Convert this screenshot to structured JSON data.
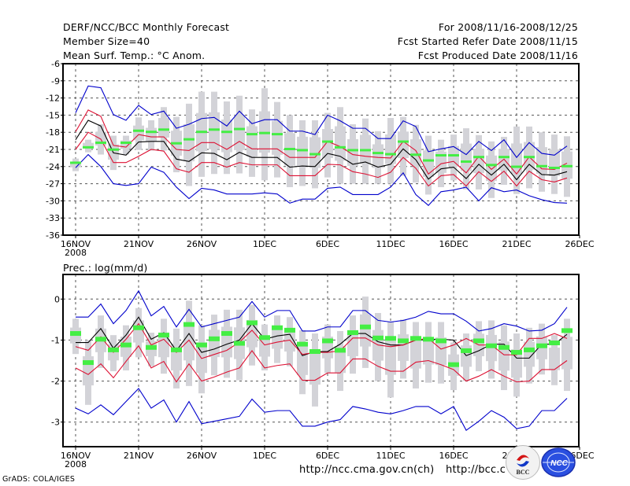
{
  "header": {
    "title": "DERF/NCC/BCC Monthly Forecast",
    "member_size": "Member Size=40",
    "variable_top": "Mean Surf. Temp.: °C Anom.",
    "period": "For 2008/11/16-2008/12/25",
    "started": "Fcst Started Refer Date 2008/11/15",
    "produced": "Fcst Produced Date 2008/11/16"
  },
  "footer": {
    "grads": "GrADS: COLA/IGES",
    "url_ncc": "http://ncc.cma.gov.cn(ch)",
    "url_bcc": "http://bcc.c",
    "logo_bcc": "BCC",
    "logo_ncc": "NCC"
  },
  "colors": {
    "extreme": "#0000cc",
    "quartile": "#dd1133",
    "median": "#000000",
    "box": "#d3d3d8",
    "marker": "#44ee44",
    "grid": "#555555"
  },
  "chart_data": [
    {
      "type": "line",
      "title": "Mean Surf. Temp.: °C Anom.",
      "xlabel": "",
      "ylabel": "",
      "x_ticks": [
        "16NOV\n2008",
        "21NOV",
        "26NOV",
        "1DEC",
        "6DEC",
        "11DEC",
        "16DEC",
        "21DEC",
        "26DEC"
      ],
      "x_range_days": [
        0,
        40
      ],
      "ylim": [
        -36,
        -6
      ],
      "y_ticks": [
        -6,
        -9,
        -12,
        -15,
        -18,
        -21,
        -24,
        -27,
        -30,
        -33,
        -36
      ],
      "grid": true,
      "series": [
        {
          "name": "max",
          "color": "extreme",
          "values": [
            -14.6,
            -9.9,
            -10.2,
            -14.9,
            -15.9,
            -13.3,
            -14.9,
            -14.3,
            -17.3,
            -16.6,
            -15.6,
            -15.4,
            -16.9,
            -14.3,
            -16.5,
            -15.8,
            -15.8,
            -17.8,
            -17.8,
            -18.4,
            -15.0,
            -16.0,
            -17.3,
            -17.3,
            -19.1,
            -19.1,
            -16.0,
            -17.0,
            -21.4,
            -20.9,
            -20.5,
            -21.9,
            -19.6,
            -21.2,
            -19.3,
            -22.4,
            -19.8,
            -21.7,
            -22.0,
            -20.4
          ]
        },
        {
          "name": "upper",
          "color": "quartile",
          "values": [
            -17.9,
            -14.1,
            -15.2,
            -20.3,
            -20.6,
            -18.4,
            -18.8,
            -18.8,
            -21.0,
            -21.2,
            -19.8,
            -19.8,
            -21.0,
            -19.6,
            -20.9,
            -20.9,
            -20.9,
            -22.4,
            -22.4,
            -22.4,
            -19.6,
            -20.5,
            -21.9,
            -22.2,
            -22.4,
            -22.5,
            -19.6,
            -21.2,
            -25.3,
            -23.5,
            -23.1,
            -25.1,
            -22.2,
            -24.5,
            -22.7,
            -25.3,
            -22.3,
            -24.4,
            -24.5,
            -23.4
          ]
        },
        {
          "name": "median",
          "color": "median",
          "values": [
            -19.3,
            -15.9,
            -16.9,
            -21.6,
            -22.0,
            -19.7,
            -19.6,
            -19.6,
            -22.7,
            -23.1,
            -21.6,
            -21.7,
            -22.8,
            -21.5,
            -22.4,
            -22.4,
            -22.4,
            -24.1,
            -23.9,
            -24.0,
            -21.7,
            -22.2,
            -23.6,
            -23.2,
            -24.1,
            -23.6,
            -20.9,
            -22.8,
            -26.2,
            -24.4,
            -24.1,
            -26.1,
            -23.6,
            -25.5,
            -23.6,
            -26.3,
            -23.6,
            -25.4,
            -25.5,
            -24.9
          ]
        },
        {
          "name": "lower",
          "color": "quartile",
          "values": [
            -21.0,
            -18.0,
            -19.2,
            -23.3,
            -23.3,
            -22.2,
            -21.0,
            -21.3,
            -24.4,
            -25.0,
            -23.3,
            -23.3,
            -24.1,
            -23.3,
            -23.7,
            -23.7,
            -23.7,
            -25.6,
            -25.6,
            -25.6,
            -23.6,
            -23.7,
            -24.9,
            -25.3,
            -25.9,
            -25.0,
            -22.4,
            -24.3,
            -27.4,
            -25.6,
            -25.4,
            -27.4,
            -24.9,
            -26.6,
            -24.8,
            -27.4,
            -24.8,
            -26.3,
            -26.7,
            -26.0
          ]
        },
        {
          "name": "min",
          "color": "extreme",
          "values": [
            -24.2,
            -21.9,
            -24.0,
            -27.0,
            -27.3,
            -27.0,
            -24.1,
            -25.0,
            -27.6,
            -29.6,
            -27.8,
            -28.1,
            -28.8,
            -28.8,
            -28.8,
            -28.6,
            -28.8,
            -30.4,
            -29.7,
            -29.7,
            -27.8,
            -27.6,
            -28.9,
            -28.9,
            -28.9,
            -27.6,
            -25.1,
            -28.9,
            -30.8,
            -28.4,
            -28.1,
            -27.6,
            -30.0,
            -27.7,
            -28.4,
            -28.1,
            -29.1,
            -29.8,
            -30.3,
            -30.4
          ]
        },
        {
          "name": "observed_marker",
          "color": "marker",
          "values": [
            -23.4,
            -20.7,
            -19.9,
            -21.1,
            -19.9,
            -17.8,
            -18.0,
            -17.6,
            -20.0,
            -19.3,
            -18.0,
            -17.6,
            -18.0,
            -17.5,
            -18.4,
            -18.2,
            -18.4,
            -21.0,
            -21.2,
            -21.9,
            -19.7,
            -20.7,
            -21.2,
            -21.2,
            -21.7,
            -21.9,
            -19.7,
            -22.0,
            -23.0,
            -22.1,
            -22.1,
            -23.2,
            -22.4,
            -23.8,
            -22.4,
            -24.1,
            -22.4,
            -24.0,
            -24.3,
            -24.0
          ]
        },
        {
          "name": "box_outer_top",
          "color": "box",
          "values": [
            -22.6,
            -19.3,
            -16.6,
            -18.6,
            -18.6,
            -15.4,
            -15.9,
            -13.6,
            -15.3,
            -13.0,
            -10.9,
            -10.9,
            -12.6,
            -11.6,
            -14.0,
            -10.3,
            -12.7,
            -15.0,
            -15.9,
            -15.9,
            -14.6,
            -13.6,
            -16.6,
            -15.6,
            -17.8,
            -15.5,
            -15.3,
            -16.7,
            -18.6,
            -19.3,
            -18.4,
            -17.3,
            -18.5,
            -19.6,
            -18.8,
            -17.0,
            -17.0,
            -18.0,
            -18.4,
            -18.7
          ]
        },
        {
          "name": "box_outer_bottom",
          "color": "box",
          "values": [
            -24.8,
            -21.5,
            -21.9,
            -24.6,
            -21.9,
            -21.1,
            -21.2,
            -21.2,
            -25.0,
            -27.4,
            -25.8,
            -25.3,
            -25.3,
            -25.2,
            -25.8,
            -26.4,
            -25.9,
            -27.6,
            -27.4,
            -27.8,
            -25.9,
            -27.0,
            -27.0,
            -27.0,
            -27.0,
            -27.0,
            -25.6,
            -26.8,
            -28.9,
            -27.6,
            -26.4,
            -28.0,
            -28.0,
            -29.5,
            -27.2,
            -28.8,
            -27.8,
            -28.4,
            -28.8,
            -29.3
          ]
        }
      ]
    },
    {
      "type": "line",
      "title": "Prec.: log(mm/d)",
      "xlabel": "",
      "ylabel": "",
      "x_ticks": [
        "16NOV\n2008",
        "21NOV",
        "26NOV",
        "1DEC",
        "6DEC",
        "11DEC",
        "16DEC",
        "21DEC",
        "26DEC"
      ],
      "x_range_days": [
        0,
        40
      ],
      "ylim": [
        -3.6,
        0.6
      ],
      "y_ticks": [
        0,
        -1,
        -2,
        -3
      ],
      "grid": true,
      "series": [
        {
          "name": "max",
          "color": "extreme",
          "values": [
            -0.44,
            -0.44,
            -0.12,
            -0.6,
            -0.28,
            0.2,
            -0.41,
            -0.18,
            -0.68,
            -0.25,
            -0.68,
            -0.6,
            -0.52,
            -0.44,
            -0.06,
            -0.44,
            -0.28,
            -0.28,
            -0.78,
            -0.78,
            -0.68,
            -0.68,
            -0.28,
            -0.28,
            -0.52,
            -0.56,
            -0.52,
            -0.44,
            -0.3,
            -0.36,
            -0.36,
            -0.54,
            -0.78,
            -0.72,
            -0.6,
            -0.66,
            -0.78,
            -0.76,
            -0.6,
            -0.2
          ]
        },
        {
          "name": "upper",
          "color": "quartile",
          "values": [
            -1.16,
            -1.25,
            -0.92,
            -1.3,
            -0.98,
            -0.6,
            -1.12,
            -0.98,
            -1.3,
            -1.0,
            -1.45,
            -1.35,
            -1.25,
            -1.05,
            -0.76,
            -1.12,
            -1.05,
            -1.0,
            -1.35,
            -1.3,
            -1.3,
            -1.26,
            -0.95,
            -0.95,
            -1.12,
            -1.16,
            -1.12,
            -1.0,
            -0.96,
            -1.22,
            -1.12,
            -0.96,
            -1.12,
            -1.12,
            -1.36,
            -1.36,
            -0.96,
            -0.96,
            -0.84,
            -0.96
          ]
        },
        {
          "name": "median",
          "color": "median",
          "values": [
            -1.06,
            -1.06,
            -0.72,
            -1.2,
            -0.88,
            -0.44,
            -0.98,
            -0.82,
            -1.26,
            -0.84,
            -1.3,
            -1.22,
            -1.1,
            -1.0,
            -0.6,
            -0.98,
            -0.9,
            -0.86,
            -1.38,
            -1.28,
            -1.28,
            -1.1,
            -0.84,
            -0.84,
            -1.04,
            -1.12,
            -1.12,
            -1.0,
            -0.98,
            -0.98,
            -1.0,
            -1.38,
            -1.26,
            -1.1,
            -1.1,
            -1.44,
            -1.44,
            -1.1,
            -1.1,
            -0.86
          ]
        },
        {
          "name": "lower",
          "color": "quartile",
          "values": [
            -1.68,
            -1.84,
            -1.58,
            -1.92,
            -1.52,
            -1.14,
            -1.68,
            -1.52,
            -2.02,
            -1.58,
            -2.0,
            -1.9,
            -1.78,
            -1.68,
            -1.26,
            -1.68,
            -1.62,
            -1.58,
            -1.98,
            -1.98,
            -1.8,
            -1.8,
            -1.46,
            -1.46,
            -1.64,
            -1.76,
            -1.76,
            -1.54,
            -1.5,
            -1.6,
            -1.72,
            -2.0,
            -1.88,
            -1.72,
            -1.88,
            -2.02,
            -2.0,
            -1.72,
            -1.72,
            -1.5
          ]
        },
        {
          "name": "min",
          "color": "extreme",
          "values": [
            -2.66,
            -2.8,
            -2.58,
            -2.82,
            -2.5,
            -2.18,
            -2.66,
            -2.46,
            -3.0,
            -2.5,
            -3.04,
            -2.98,
            -2.92,
            -2.86,
            -2.44,
            -2.76,
            -2.72,
            -2.72,
            -3.1,
            -3.1,
            -3.0,
            -2.94,
            -2.62,
            -2.68,
            -2.76,
            -2.8,
            -2.72,
            -2.62,
            -2.62,
            -2.8,
            -2.62,
            -3.2,
            -2.98,
            -2.72,
            -2.88,
            -3.16,
            -3.1,
            -2.72,
            -2.72,
            -2.42
          ]
        },
        {
          "name": "observed_marker",
          "color": "marker",
          "values": [
            -0.82,
            -1.53,
            -0.96,
            -1.22,
            -1.1,
            -0.68,
            -1.16,
            -0.86,
            -1.22,
            -0.6,
            -1.1,
            -0.95,
            -0.82,
            -1.06,
            -0.56,
            -0.92,
            -0.68,
            -0.74,
            -1.08,
            -1.26,
            -1.0,
            -1.23,
            -0.8,
            -0.66,
            -0.93,
            -0.94,
            -1.0,
            -0.94,
            -0.96,
            -1.0,
            -1.58,
            -1.24,
            -1.0,
            -1.12,
            -1.16,
            -1.28,
            -1.22,
            -1.12,
            -1.05,
            -0.75
          ]
        },
        {
          "name": "box_outer_top",
          "color": "box",
          "values": [
            -0.48,
            -1.0,
            -0.4,
            -0.88,
            -0.64,
            -0.22,
            -0.82,
            -0.48,
            -0.72,
            -0.04,
            -0.64,
            -0.38,
            -0.26,
            -0.26,
            -0.14,
            -0.62,
            -0.4,
            -0.44,
            -0.76,
            -0.84,
            -0.62,
            -0.78,
            -0.4,
            0.06,
            -0.34,
            -0.56,
            -0.5,
            -0.56,
            -0.56,
            -0.56,
            -1.06,
            -0.84,
            -0.54,
            -0.52,
            -0.64,
            -0.84,
            -0.7,
            -0.6,
            -0.88,
            -0.48
          ]
        },
        {
          "name": "box_outer_bottom",
          "color": "box",
          "values": [
            -1.34,
            -2.58,
            -1.68,
            -1.76,
            -1.74,
            -1.42,
            -1.64,
            -1.82,
            -2.18,
            -2.12,
            -2.3,
            -1.86,
            -1.92,
            -1.98,
            -1.62,
            -1.74,
            -1.56,
            -1.64,
            -2.32,
            -2.62,
            -1.8,
            -2.24,
            -1.82,
            -1.68,
            -2.0,
            -2.4,
            -1.94,
            -2.18,
            -2.04,
            -2.06,
            -2.22,
            -2.0,
            -1.76,
            -1.94,
            -2.22,
            -2.38,
            -2.06,
            -1.84,
            -2.1,
            -2.24
          ]
        }
      ]
    }
  ]
}
